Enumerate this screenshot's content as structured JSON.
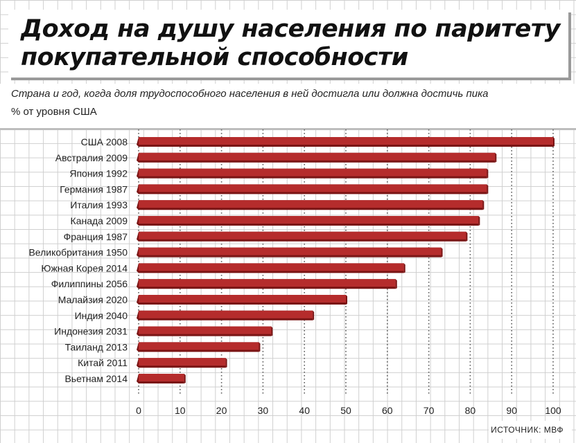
{
  "title": "Доход на душу населения по паритету покупательной способности",
  "subtitle": "Страна и год, когда доля трудоспособного населения в ней достигла или должна достичь пика",
  "unit_label": "% от уровня США",
  "source": "ИСТОЧНИК: МВФ",
  "colors": {
    "bar": "#b52c2c",
    "bar_edge": "#7a1515"
  },
  "chart_data": {
    "type": "bar",
    "orientation": "horizontal",
    "categories": [
      "США 2008",
      "Австралия 2009",
      "Япония 1992",
      "Германия 1987",
      "Италия 1993",
      "Канада 2009",
      "Франция 1987",
      "Великобритания 1950",
      "Южная Корея 2014",
      "Филиппины 2056",
      "Малайзия 2020",
      "Индия 2040",
      "Индонезия 2031",
      "Таиланд 2013",
      "Китай 2011",
      "Вьетнам 2014"
    ],
    "values": [
      100,
      86,
      84,
      84,
      83,
      82,
      79,
      73,
      64,
      62,
      50,
      42,
      32,
      29,
      21,
      11
    ],
    "xticks": [
      "0",
      "10",
      "20",
      "30",
      "40",
      "50",
      "60",
      "70",
      "80",
      "90",
      "100"
    ],
    "xlim": [
      0,
      100
    ],
    "grid": true
  }
}
